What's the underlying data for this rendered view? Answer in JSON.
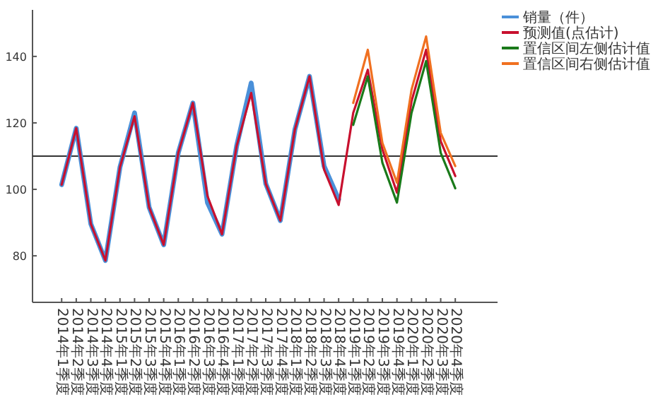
{
  "chart_data": {
    "type": "line",
    "categories": [
      "2014年1季度",
      "2014年2季度",
      "2014年3季度",
      "2014年4季度",
      "2015年1季度",
      "2015年2季度",
      "2015年3季度",
      "2015年4季度",
      "2016年1季度",
      "2016年2季度",
      "2016年3季度",
      "2016年4季度",
      "2017年1季度",
      "2017年2季度",
      "2017年3季度",
      "2017年4季度",
      "2018年1季度",
      "2018年2季度",
      "2018年3季度",
      "2018年4季度",
      "2019年1季度",
      "2019年2季度",
      "2019年3季度",
      "2019年4季度",
      "2020年1季度",
      "2020年2季度",
      "2020年3季度",
      "2020年4季度"
    ],
    "series": [
      {
        "name": "销量（件）",
        "color": "#4a90d9",
        "values": [
          101.4,
          118.4,
          89.6,
          78.6,
          106.7,
          123,
          94.6,
          83.3,
          111,
          126,
          96,
          86.5,
          113,
          132,
          101.7,
          90.6,
          118,
          134,
          107,
          97,
          null,
          null,
          null,
          null,
          null,
          null,
          null,
          null
        ]
      },
      {
        "name": "预测值(点估计)",
        "color": "#c8102e",
        "values": [
          101.4,
          118.4,
          89.6,
          78.6,
          106.7,
          122,
          94.6,
          83.3,
          111,
          126,
          98,
          86.5,
          113,
          129,
          101.7,
          90.6,
          118,
          134,
          106,
          95.3,
          123,
          136,
          112,
          99,
          126.5,
          142,
          114.5,
          104
        ]
      },
      {
        "name": "置信区间左侧估计值",
        "color": "#1a7a1a",
        "values": [
          null,
          null,
          null,
          null,
          null,
          null,
          null,
          null,
          null,
          null,
          null,
          null,
          null,
          null,
          null,
          null,
          null,
          null,
          null,
          null,
          119.4,
          134,
          108,
          96,
          123,
          138.6,
          111,
          100.3
        ]
      },
      {
        "name": "置信区间右侧估计值",
        "color": "#f07020",
        "values": [
          null,
          null,
          null,
          null,
          null,
          null,
          null,
          null,
          null,
          null,
          null,
          null,
          null,
          null,
          null,
          null,
          null,
          null,
          null,
          null,
          126,
          142,
          114,
          102,
          130,
          146,
          117,
          107
        ]
      }
    ],
    "ylim": [
      66,
      154
    ],
    "yticks": [
      80,
      100,
      120,
      140
    ],
    "ref_lines": [
      {
        "axis": "y",
        "value": 110,
        "color": "#333333"
      }
    ],
    "legend": "top right",
    "grid": false
  }
}
